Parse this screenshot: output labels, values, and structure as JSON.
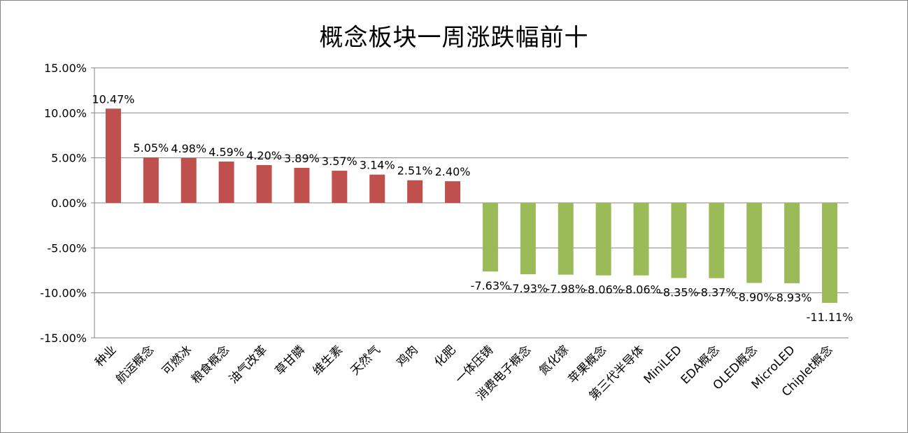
{
  "chart_data": {
    "type": "bar",
    "title": "概念板块一周涨跌幅前十",
    "xlabel": "",
    "ylabel": "",
    "ylim": [
      -15,
      15
    ],
    "y_ticks": [
      "15.00%",
      "10.00%",
      "5.00%",
      "0.00%",
      "-5.00%",
      "-10.00%",
      "-15.00%"
    ],
    "grid": true,
    "legend": "none",
    "colors": {
      "positive": "#C0504D",
      "negative": "#9BBB59"
    },
    "categories": [
      "种业",
      "航运概念",
      "可燃冰",
      "粮食概念",
      "油气改革",
      "草甘膦",
      "维生素",
      "天然气",
      "鸡肉",
      "化肥",
      "一体压铸",
      "消费电子概念",
      "氮化镓",
      "苹果概念",
      "第三代半导体",
      "MiniLED",
      "EDA概念",
      "OLED概念",
      "MicroLED",
      "Chiplet概念"
    ],
    "values": [
      10.47,
      5.05,
      4.98,
      4.59,
      4.2,
      3.89,
      3.57,
      3.14,
      2.51,
      2.4,
      -7.63,
      -7.93,
      -7.98,
      -8.06,
      -8.06,
      -8.35,
      -8.37,
      -8.9,
      -8.93,
      -11.11
    ],
    "data_labels": [
      "10.47%",
      "5.05%",
      "4.98%",
      "4.59%",
      "4.20%",
      "3.89%",
      "3.57%",
      "3.14%",
      "2.51%",
      "2.40%",
      "-7.63%",
      "-7.93%",
      "-7.98%",
      "-8.06%",
      "-8.06%",
      "-8.35%",
      "-8.37%",
      "-8.90%",
      "-8.93%",
      "-11.11%"
    ]
  }
}
